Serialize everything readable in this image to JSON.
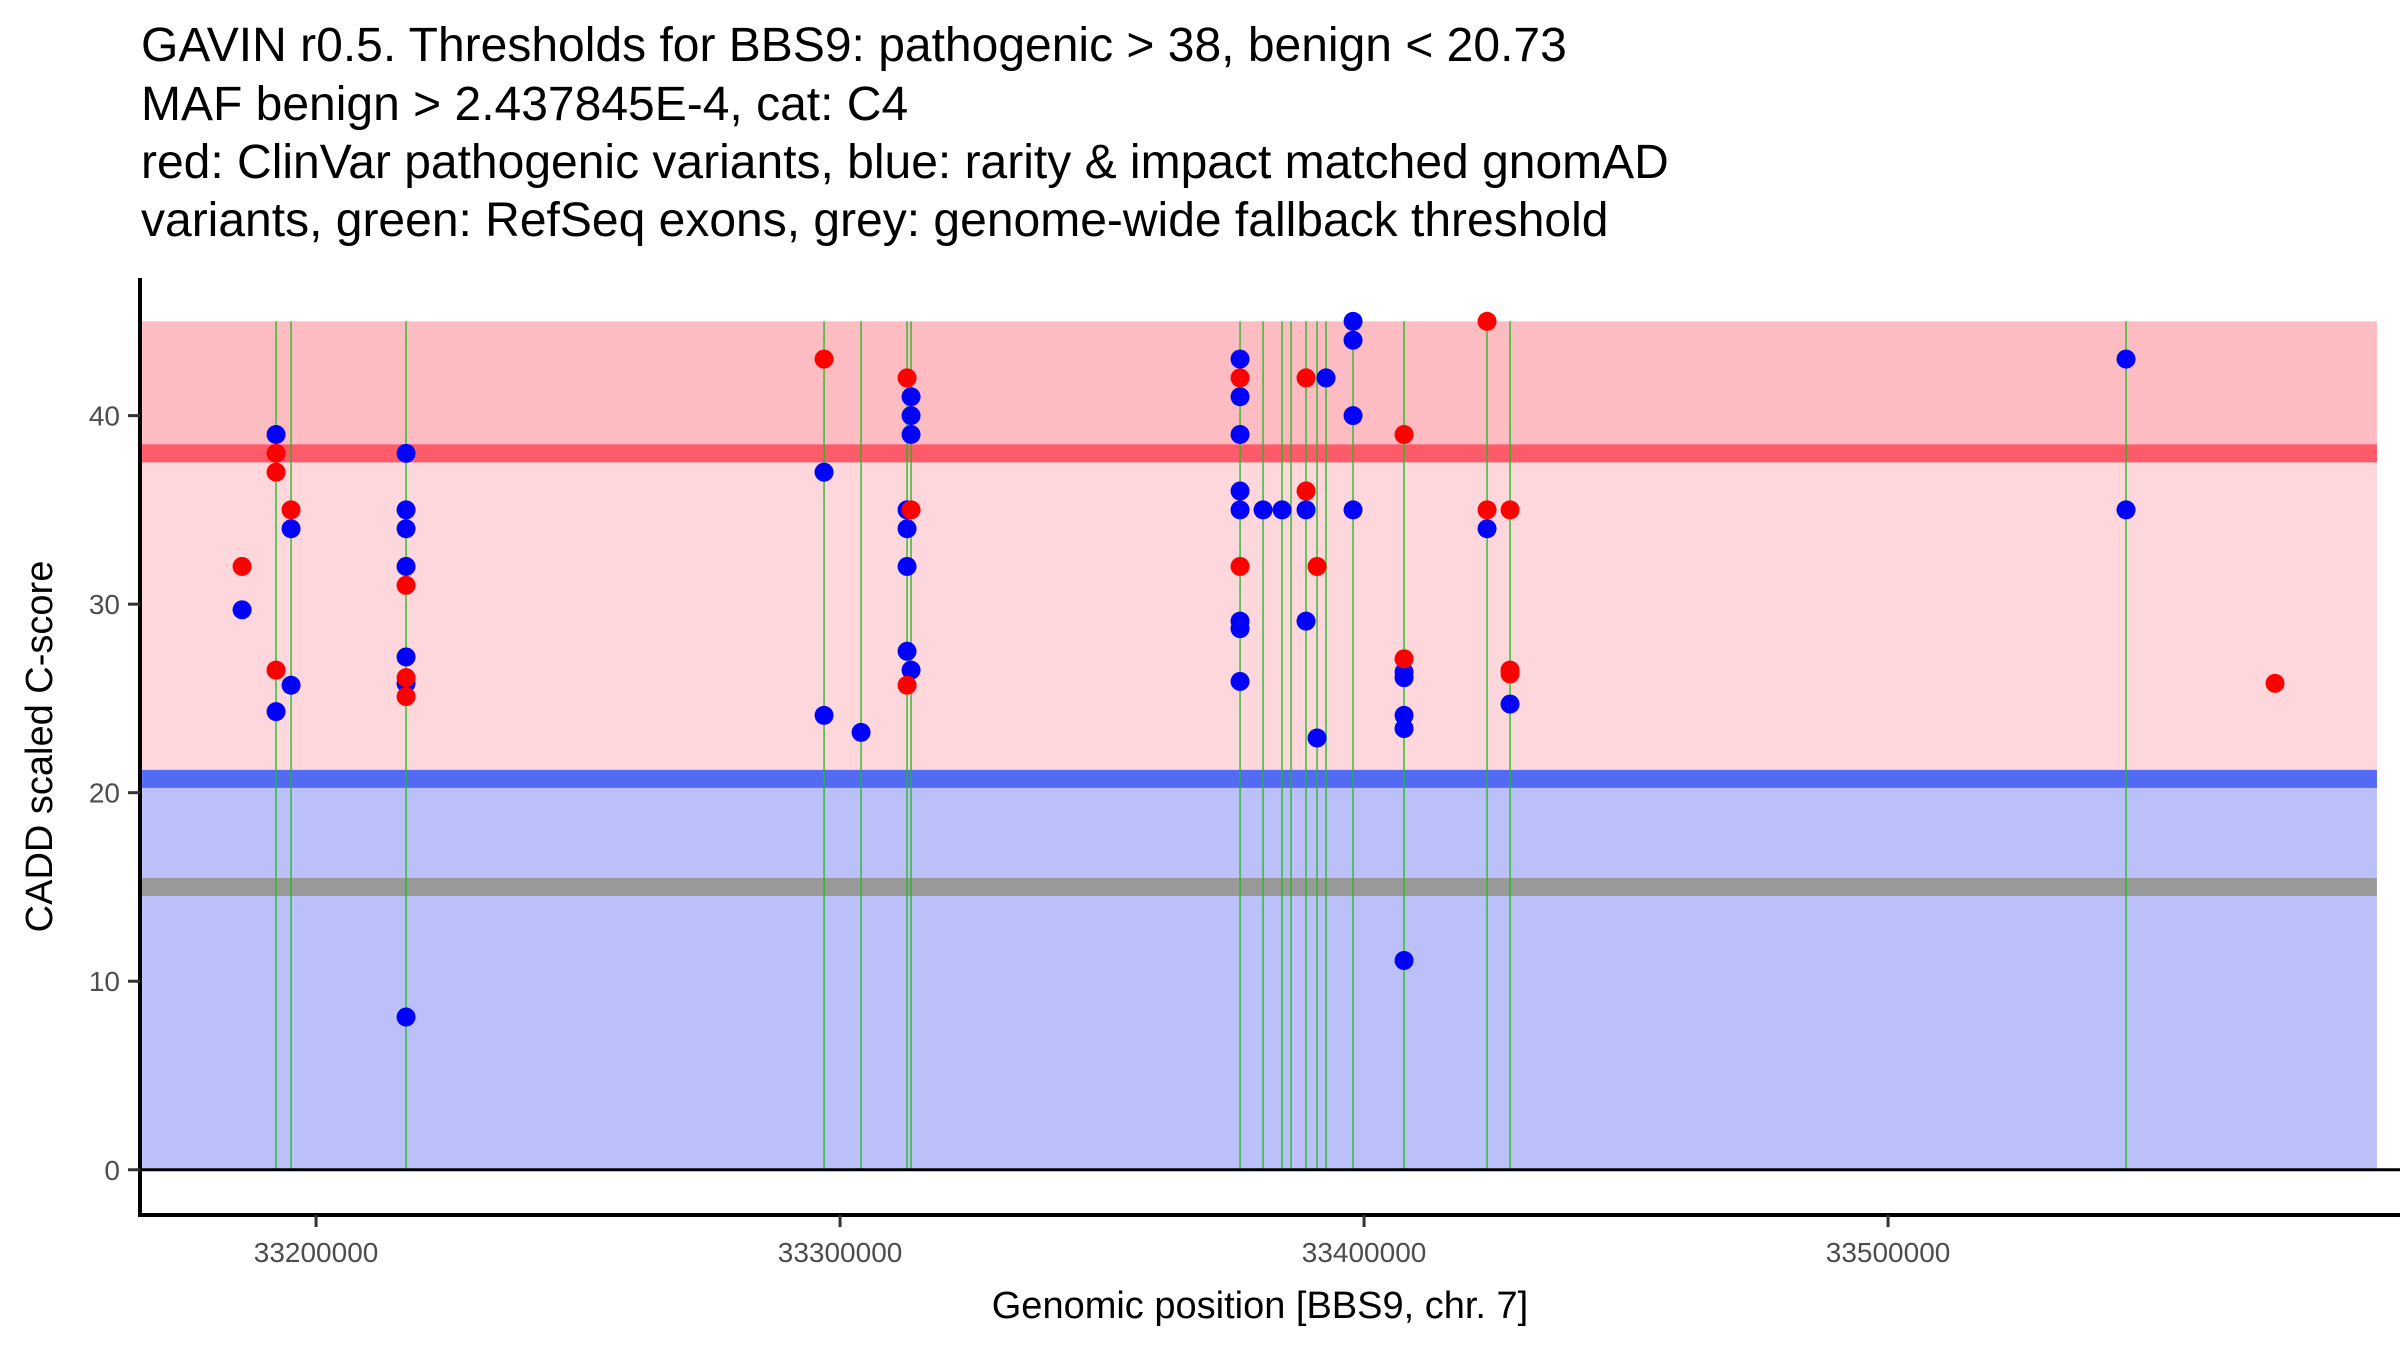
{
  "chart_data": {
    "type": "scatter",
    "title_lines": [
      "GAVIN r0.5. Thresholds for BBS9: pathogenic > 38, benign < 20.73",
      "MAF benign > 2.437845E-4, cat: C4",
      "red: ClinVar pathogenic variants, blue: rarity & impact matched gnomAD",
      "variants, green: RefSeq exons, grey: genome-wide fallback threshold"
    ],
    "xlabel": "Genomic position [BBS9, chr. 7]",
    "ylabel": "CADD scaled C-score",
    "xlim": [
      33166400,
      33597700
    ],
    "ylim": [
      -2.4,
      47.3
    ],
    "x_ticks": [
      {
        "value": 33200000,
        "label": "33200000"
      },
      {
        "value": 33300000,
        "label": "33300000"
      },
      {
        "value": 33400000,
        "label": "33400000"
      },
      {
        "value": 33500000,
        "label": "33500000"
      }
    ],
    "y_ticks": [
      {
        "value": 0,
        "label": "0"
      },
      {
        "value": 10,
        "label": "10"
      },
      {
        "value": 20,
        "label": "20"
      },
      {
        "value": 30,
        "label": "30"
      },
      {
        "value": 40,
        "label": "40"
      }
    ],
    "grid": false,
    "zero_line": 0,
    "regions": [
      {
        "name": "benign-region",
        "ymin": 0,
        "ymax": 20.73,
        "xmin": 33166800,
        "xmax": 33593300,
        "color": "#bbc1f8"
      },
      {
        "name": "intermediate-region",
        "ymin": 20.73,
        "ymax": 38,
        "xmin": 33166800,
        "xmax": 33593300,
        "color": "#fdd7db"
      },
      {
        "name": "pathogenic-region",
        "ymin": 38,
        "ymax": 45,
        "xmin": 33166800,
        "xmax": 33593300,
        "color": "#fdbcc1"
      }
    ],
    "thresholds": [
      {
        "name": "pathogenic-threshold",
        "value": 38,
        "color": "#fd5a6a",
        "label": "pathogenic > 38"
      },
      {
        "name": "benign-threshold",
        "value": 20.73,
        "color": "#536af5",
        "label": "benign < 20.73"
      },
      {
        "name": "genome-wide-fallback-threshold",
        "value": 15,
        "color": "#999999",
        "label": "genome-wide fallback"
      }
    ],
    "exons": {
      "color": "#22bb22",
      "positions": [
        33192366,
        33195229,
        33217176,
        33296947,
        33304008,
        33312786,
        33313550,
        33376336,
        33380725,
        33384351,
        33386069,
        33388931,
        33391031,
        33392748,
        33397900,
        33407634,
        33423473,
        33427863,
        33545420
      ]
    },
    "series": [
      {
        "name": "ClinVar pathogenic variants",
        "color": "#ff0000",
        "points": [
          {
            "x": 33185878,
            "y": 32.0
          },
          {
            "x": 33192366,
            "y": 38.0
          },
          {
            "x": 33192366,
            "y": 37.0
          },
          {
            "x": 33192366,
            "y": 26.5
          },
          {
            "x": 33195229,
            "y": 35.0
          },
          {
            "x": 33217176,
            "y": 31.0
          },
          {
            "x": 33217176,
            "y": 26.1
          },
          {
            "x": 33217176,
            "y": 25.1
          },
          {
            "x": 33296947,
            "y": 43.0
          },
          {
            "x": 33312786,
            "y": 42.0
          },
          {
            "x": 33312786,
            "y": 25.7
          },
          {
            "x": 33313550,
            "y": 35.0
          },
          {
            "x": 33376336,
            "y": 42.0
          },
          {
            "x": 33376336,
            "y": 32.0
          },
          {
            "x": 33388931,
            "y": 42.0
          },
          {
            "x": 33388931,
            "y": 36.0
          },
          {
            "x": 33391031,
            "y": 32.0
          },
          {
            "x": 33407634,
            "y": 39.0
          },
          {
            "x": 33407634,
            "y": 27.1
          },
          {
            "x": 33423473,
            "y": 45.0
          },
          {
            "x": 33423473,
            "y": 35.0
          },
          {
            "x": 33427863,
            "y": 35.0
          },
          {
            "x": 33427863,
            "y": 26.5
          },
          {
            "x": 33427863,
            "y": 26.3
          },
          {
            "x": 33573855,
            "y": 25.8
          }
        ]
      },
      {
        "name": "rarity & impact matched gnomAD variants",
        "color": "#0000ff",
        "points": [
          {
            "x": 33185878,
            "y": 29.7
          },
          {
            "x": 33192366,
            "y": 39.0
          },
          {
            "x": 33192366,
            "y": 24.3
          },
          {
            "x": 33195229,
            "y": 34.0
          },
          {
            "x": 33195229,
            "y": 25.7
          },
          {
            "x": 33217176,
            "y": 38.0
          },
          {
            "x": 33217176,
            "y": 35.0
          },
          {
            "x": 33217176,
            "y": 34.0
          },
          {
            "x": 33217176,
            "y": 32.0
          },
          {
            "x": 33217176,
            "y": 27.2
          },
          {
            "x": 33217176,
            "y": 25.8
          },
          {
            "x": 33217176,
            "y": 8.1
          },
          {
            "x": 33296947,
            "y": 37.0
          },
          {
            "x": 33296947,
            "y": 24.1
          },
          {
            "x": 33304008,
            "y": 23.2
          },
          {
            "x": 33312786,
            "y": 35.0
          },
          {
            "x": 33312786,
            "y": 34.0
          },
          {
            "x": 33312786,
            "y": 32.0
          },
          {
            "x": 33312786,
            "y": 27.5
          },
          {
            "x": 33313550,
            "y": 41.0
          },
          {
            "x": 33313550,
            "y": 40.0
          },
          {
            "x": 33313550,
            "y": 39.0
          },
          {
            "x": 33313550,
            "y": 26.5
          },
          {
            "x": 33376336,
            "y": 43.0
          },
          {
            "x": 33376336,
            "y": 41.0
          },
          {
            "x": 33376336,
            "y": 39.0
          },
          {
            "x": 33376336,
            "y": 36.0
          },
          {
            "x": 33376336,
            "y": 35.0
          },
          {
            "x": 33376336,
            "y": 29.1
          },
          {
            "x": 33376336,
            "y": 28.7
          },
          {
            "x": 33376336,
            "y": 25.9
          },
          {
            "x": 33380725,
            "y": 35.0
          },
          {
            "x": 33384351,
            "y": 35.0
          },
          {
            "x": 33388931,
            "y": 35.0
          },
          {
            "x": 33388931,
            "y": 29.1
          },
          {
            "x": 33391031,
            "y": 22.9
          },
          {
            "x": 33392748,
            "y": 42.0
          },
          {
            "x": 33397900,
            "y": 45.0
          },
          {
            "x": 33397900,
            "y": 44.0
          },
          {
            "x": 33397900,
            "y": 40.0
          },
          {
            "x": 33397900,
            "y": 35.0
          },
          {
            "x": 33407634,
            "y": 26.4
          },
          {
            "x": 33407634,
            "y": 26.1
          },
          {
            "x": 33407634,
            "y": 24.1
          },
          {
            "x": 33407634,
            "y": 23.4
          },
          {
            "x": 33407634,
            "y": 11.1
          },
          {
            "x": 33423473,
            "y": 34.0
          },
          {
            "x": 33427863,
            "y": 24.7
          },
          {
            "x": 33545420,
            "y": 43.0
          },
          {
            "x": 33545420,
            "y": 35.0
          }
        ]
      }
    ]
  }
}
